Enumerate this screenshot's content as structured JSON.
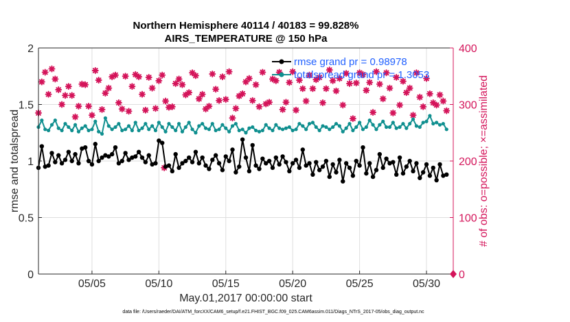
{
  "chart_data": {
    "type": "line",
    "title_line1": "Northern Hemisphere 40114 / 40183 = 99.828%",
    "title_line2": "AIRS_TEMPERATURE @ 150 hPa",
    "xlabel": "May.01,2017 00:00:00 start",
    "ylabel_left": "rmse and totalspread",
    "ylabel_right": "# of obs: o=possible; ×=assimilated",
    "xlim": [
      1.0,
      32.0
    ],
    "ylim_left": [
      0,
      2
    ],
    "ylim_right": [
      0,
      400
    ],
    "x_ticks": [
      5,
      10,
      15,
      20,
      25,
      30
    ],
    "x_tick_labels": [
      "05/05",
      "05/10",
      "05/15",
      "05/20",
      "05/25",
      "05/30"
    ],
    "y_ticks_left": [
      "0",
      "0.5",
      "1",
      "1.5",
      "2"
    ],
    "y_ticks_right": [
      "0",
      "100",
      "200",
      "300",
      "400"
    ],
    "grid": true,
    "legend_position": "top-right",
    "series": [
      {
        "name": "rmse grand pr = 0.98978",
        "axis": "left",
        "color": "#000000",
        "values": [
          0.94,
          1.13,
          0.95,
          0.96,
          1.07,
          0.99,
          1.05,
          0.98,
          1.01,
          1.08,
          1.0,
          1.06,
          0.98,
          1.11,
          1.12,
          1.0,
          0.97,
          1.15,
          1.0,
          1.03,
          1.05,
          1.04,
          1.06,
          1.12,
          0.98,
          1.0,
          1.07,
          1.01,
          1.03,
          1.04,
          1.08,
          1.03,
          0.99,
          1.05,
          0.97,
          0.98,
          1.18,
          1.16,
          0.95,
          0.96,
          0.91,
          1.06,
          0.94,
          0.98,
          1.0,
          1.03,
          0.99,
          1.08,
          0.98,
          1.03,
          0.96,
          0.93,
          1.01,
          1.05,
          0.98,
          0.92,
          1.04,
          1.0,
          1.1,
          0.9,
          0.95,
          1.19,
          1.03,
          0.91,
          1.14,
          0.96,
          0.93,
          1.02,
          0.98,
          1.0,
          0.94,
          1.03,
          0.97,
          1.04,
          0.99,
          0.91,
          0.98,
          1.01,
          0.94,
          1.1,
          0.96,
          0.98,
          0.88,
          0.99,
          0.92,
          0.95,
          1.0,
          0.86,
          0.97,
          0.9,
          1.01,
          0.82,
          0.98,
          0.94,
          0.87,
          1.0,
          0.96,
          1.12,
          0.89,
          0.98,
          0.86,
          0.92,
          1.06,
          0.94,
          1.02,
          0.98,
          0.99,
          0.88,
          1.03,
          0.89,
          0.95,
          1.0,
          0.91,
          0.98,
          0.85,
          0.9,
          0.97,
          0.87,
          0.94,
          0.83,
          0.97,
          0.87,
          0.88
        ]
      },
      {
        "name": "totalspread grand pr = 1.3053",
        "axis": "left",
        "color": "#0f8f8f",
        "values": [
          1.3,
          1.36,
          1.28,
          1.27,
          1.32,
          1.36,
          1.29,
          1.27,
          1.33,
          1.3,
          1.27,
          1.32,
          1.26,
          1.29,
          1.31,
          1.27,
          1.28,
          1.35,
          1.26,
          1.24,
          1.38,
          1.31,
          1.28,
          1.3,
          1.33,
          1.27,
          1.28,
          1.31,
          1.27,
          1.34,
          1.27,
          1.29,
          1.33,
          1.28,
          1.31,
          1.27,
          1.34,
          1.3,
          1.26,
          1.33,
          1.3,
          1.27,
          1.33,
          1.26,
          1.3,
          1.34,
          1.28,
          1.25,
          1.31,
          1.33,
          1.29,
          1.28,
          1.33,
          1.27,
          1.28,
          1.32,
          1.29,
          1.26,
          1.31,
          1.33,
          1.27,
          1.28,
          1.25,
          1.29,
          1.3,
          1.27,
          1.26,
          1.27,
          1.32,
          1.29,
          1.27,
          1.32,
          1.29,
          1.28,
          1.29,
          1.3,
          1.27,
          1.28,
          1.33,
          1.31,
          1.28,
          1.33,
          1.34,
          1.3,
          1.27,
          1.31,
          1.3,
          1.28,
          1.3,
          1.33,
          1.31,
          1.26,
          1.29,
          1.33,
          1.27,
          1.3,
          1.34,
          1.28,
          1.3,
          1.36,
          1.32,
          1.28,
          1.32,
          1.35,
          1.3,
          1.3,
          1.34,
          1.29,
          1.3,
          1.33,
          1.29,
          1.33,
          1.37,
          1.31,
          1.3,
          1.34,
          1.35,
          1.4,
          1.33,
          1.34,
          1.32,
          1.33,
          1.28
        ]
      }
    ],
    "obs_series": {
      "name": "# of obs",
      "axis": "right",
      "color": "#d4145a",
      "values": [
        285,
        340,
        357,
        318,
        363,
        345,
        326,
        300,
        316,
        332,
        316,
        278,
        297,
        336,
        335,
        297,
        281,
        360,
        343,
        291,
        320,
        329,
        349,
        352,
        303,
        292,
        350,
        288,
        332,
        353,
        349,
        318,
        290,
        348,
        329,
        293,
        342,
        352,
        306,
        295,
        296,
        337,
        345,
        335,
        317,
        321,
        356,
        351,
        310,
        318,
        292,
        297,
        354,
        327,
        307,
        349,
        309,
        358,
        276,
        293,
        315,
        319,
        340,
        346,
        307,
        335,
        296,
        357,
        301,
        304,
        345,
        342,
        357,
        291,
        304,
        339,
        358,
        290,
        343,
        328,
        306,
        352,
        328,
        344,
        348,
        303,
        328,
        361,
        342,
        324,
        346,
        299,
        355,
        337,
        275,
        338,
        356,
        353,
        325,
        339,
        286,
        358,
        336,
        310,
        356,
        329,
        285,
        348,
        299,
        341,
        321,
        329,
        281,
        356,
        313,
        296,
        346,
        319,
        303,
        299,
        317,
        306,
        289
      ]
    },
    "extra_obs_marker": {
      "x_day": 10.4,
      "value": 188
    }
  },
  "footer": "data file: /Users/raeder/DAI/ATM_forcXX/CAM6_setup/f.e21.FHIST_BGC.f09_025.CAM6assim.011/Diags_NTrS_2017-05/obs_diag_output.nc"
}
